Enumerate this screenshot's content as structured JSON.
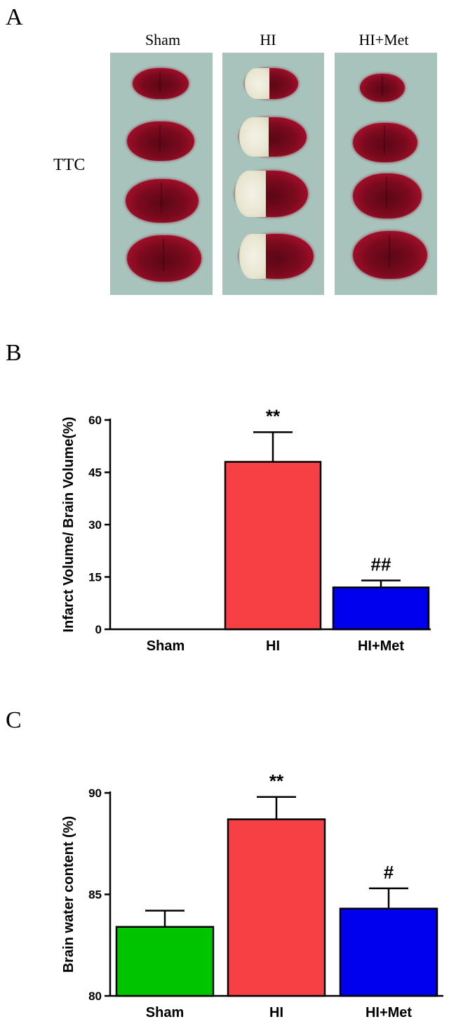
{
  "panel_a": {
    "letter": "A",
    "row_label": "TTC",
    "columns": [
      "Sham",
      "HI",
      "HI+Met"
    ]
  },
  "panel_b": {
    "letter": "B"
  },
  "panel_c": {
    "letter": "C"
  },
  "chart_data": [
    {
      "type": "bar",
      "categories": [
        "Sham",
        "HI",
        "HI+Met"
      ],
      "values": [
        0,
        48,
        12
      ],
      "errors": [
        0,
        8.5,
        2
      ],
      "annotations": [
        "",
        "**",
        "##"
      ],
      "colors": [
        "#00c400",
        "#f74044",
        "#0000ee"
      ],
      "ylabel": "Infarct Volume/ Brain Volume(%)",
      "xlabel": "",
      "ylim": [
        0,
        60
      ],
      "yticks": [
        "0",
        "15",
        "30",
        "45",
        "60"
      ],
      "grid": false
    },
    {
      "type": "bar",
      "categories": [
        "Sham",
        "HI",
        "HI+Met"
      ],
      "values": [
        83.4,
        88.7,
        84.3
      ],
      "errors": [
        0.8,
        1.1,
        1.0
      ],
      "annotations": [
        "",
        "**",
        "#"
      ],
      "colors": [
        "#00c400",
        "#f74044",
        "#0000ee"
      ],
      "ylabel": "Brain water content (%)",
      "xlabel": "",
      "ylim": [
        80,
        90
      ],
      "yticks": [
        "80",
        "85",
        "90"
      ],
      "grid": false
    }
  ]
}
